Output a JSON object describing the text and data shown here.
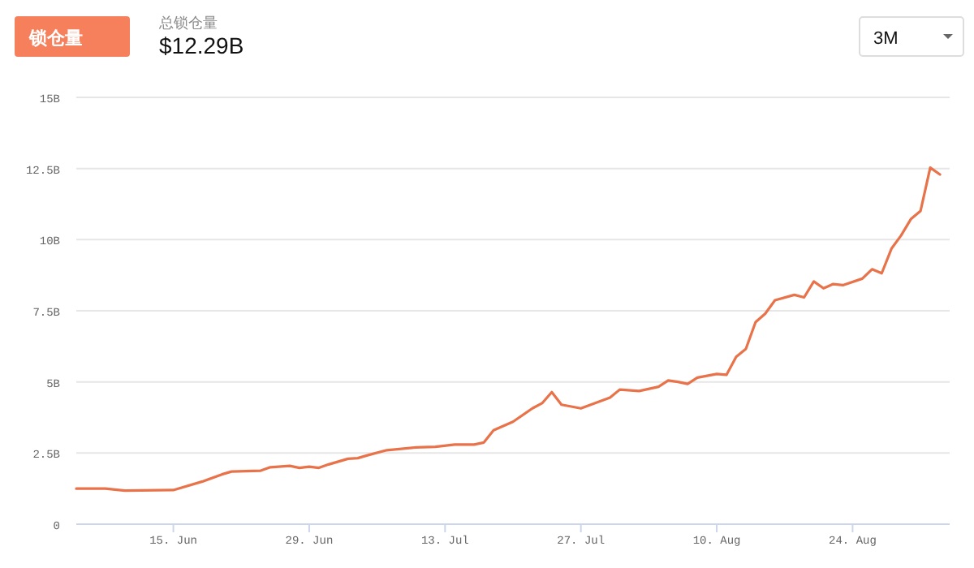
{
  "chart_data": {
    "type": "line",
    "title": "总锁仓量",
    "subtitle": "$12.29B",
    "annotations": [
      "锁仓量",
      "3M"
    ],
    "x": [
      "--06-05",
      "--06-08",
      "--06-10",
      "--06-15",
      "--06-18",
      "--06-20",
      "--06-21",
      "--06-24",
      "--06-25",
      "--06-27",
      "--06-28",
      "--06-29",
      "--06-30",
      "--07-01",
      "--07-03",
      "--07-04",
      "--07-05",
      "--07-07",
      "--07-10",
      "--07-12",
      "--07-14",
      "--07-16",
      "--07-17",
      "--07-18",
      "--07-20",
      "--07-22",
      "--07-23",
      "--07-24",
      "--07-25",
      "--07-27",
      "--07-30",
      "--07-31",
      "--08-02",
      "--08-04",
      "--08-05",
      "--08-06",
      "--08-07",
      "--08-08",
      "--08-10",
      "--08-11",
      "--08-12",
      "--08-13",
      "--08-14",
      "--08-15",
      "--08-16",
      "--08-18",
      "--08-19",
      "--08-20",
      "--08-21",
      "--08-22",
      "--08-23",
      "--08-25",
      "--08-26",
      "--08-27",
      "--08-28",
      "--08-29",
      "--08-30",
      "--08-31",
      "--09-01",
      "--09-02"
    ],
    "series": [
      {
        "color": "#e8734a",
        "values": [
          1.25,
          1.25,
          1.18,
          1.2,
          1.5,
          1.75,
          1.85,
          1.88,
          2.0,
          2.05,
          1.98,
          2.02,
          1.98,
          2.1,
          2.3,
          2.32,
          2.42,
          2.6,
          2.7,
          2.72,
          2.8,
          2.8,
          2.87,
          3.3,
          3.6,
          4.07,
          4.25,
          4.64,
          4.2,
          4.07,
          4.45,
          4.73,
          4.68,
          4.83,
          5.05,
          5.0,
          4.93,
          5.15,
          5.28,
          5.25,
          5.88,
          6.16,
          7.1,
          7.4,
          7.87,
          8.06,
          7.97,
          8.53,
          8.29,
          8.44,
          8.4,
          8.63,
          8.96,
          8.82,
          9.68,
          10.15,
          10.72,
          11.01,
          12.53,
          12.29
        ]
      }
    ],
    "xlim": [
      "--06-05",
      "--09-03"
    ],
    "xticks": [
      {
        "value": "--06-15",
        "label": "15. Jun"
      },
      {
        "value": "--06-29",
        "label": "29. Jun"
      },
      {
        "value": "--07-13",
        "label": "13. Jul"
      },
      {
        "value": "--07-27",
        "label": "27. Jul"
      },
      {
        "value": "--08-10",
        "label": "10. Aug"
      },
      {
        "value": "--08-24",
        "label": "24. Aug"
      }
    ],
    "ylim": [
      0,
      15
    ],
    "yticks": [
      0,
      {
        "value": 2.5,
        "label": "2.5B"
      },
      {
        "value": 5,
        "label": "5B"
      },
      {
        "value": 7.5,
        "label": "7.5B"
      },
      {
        "value": 10,
        "label": "10B"
      },
      {
        "value": 12.5,
        "label": "12.5B"
      },
      {
        "value": 15,
        "label": "15B"
      }
    ],
    "grid": "y"
  }
}
